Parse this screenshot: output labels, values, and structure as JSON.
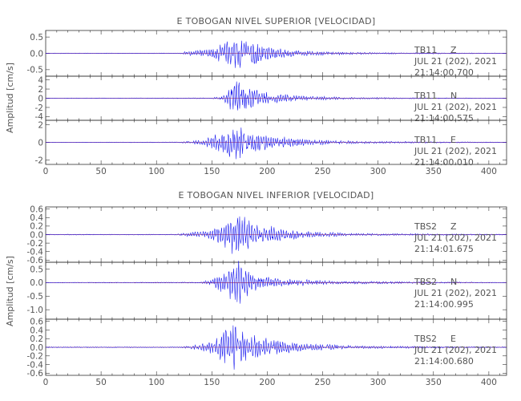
{
  "colors": {
    "trace": "#1010ee",
    "zero_line": "#cc2222",
    "axes": "#333333",
    "text": "#555555"
  },
  "chart_data": [
    {
      "type": "line",
      "title": "E TOBOGAN NIVEL SUPERIOR [VELOCIDAD]",
      "ylabel": "Amplitud [cm/s]",
      "xlim": [
        0,
        416
      ],
      "x_ticks": [
        "0",
        "50",
        "100",
        "150",
        "200",
        "250",
        "300",
        "350",
        "400"
      ],
      "grid": false,
      "series": [
        {
          "name": "TB11 Z",
          "station": "TB11",
          "component": "Z",
          "date": "JUL 21 (202), 2021",
          "time": "21:14:00.700",
          "ylim": [
            -0.7,
            0.7
          ],
          "y_ticks": [
            "0.5",
            "0.0",
            "-0.5"
          ],
          "envelope": [
            [
              0,
              0.01
            ],
            [
              120,
              0.01
            ],
            [
              125,
              0.05
            ],
            [
              150,
              0.14
            ],
            [
              165,
              0.45
            ],
            [
              170,
              0.56
            ],
            [
              175,
              0.62
            ],
            [
              180,
              0.48
            ],
            [
              190,
              0.38
            ],
            [
              200,
              0.22
            ],
            [
              220,
              0.12
            ],
            [
              250,
              0.06
            ],
            [
              300,
              0.025
            ],
            [
              416,
              0.01
            ]
          ]
        },
        {
          "name": "TB11 N",
          "station": "TB11",
          "component": "N",
          "date": "JUL 21 (202), 2021",
          "time": "21:14:00.575",
          "ylim": [
            -4.8,
            4.8
          ],
          "y_ticks": [
            "4",
            "2",
            "0",
            "-2",
            "-4"
          ],
          "envelope": [
            [
              0,
              0.05
            ],
            [
              150,
              0.1
            ],
            [
              160,
              0.6
            ],
            [
              168,
              3.2
            ],
            [
              175,
              4.3
            ],
            [
              182,
              2.6
            ],
            [
              195,
              1.6
            ],
            [
              210,
              1.0
            ],
            [
              240,
              0.5
            ],
            [
              280,
              0.2
            ],
            [
              416,
              0.05
            ]
          ]
        },
        {
          "name": "TB11 E",
          "station": "TB11",
          "component": "E",
          "date": "JUL 21 (202), 2021",
          "time": "21:14:00.010",
          "ylim": [
            -2.5,
            2.5
          ],
          "y_ticks": [
            "2",
            "0",
            "-2"
          ],
          "envelope": [
            [
              0,
              0.02
            ],
            [
              120,
              0.05
            ],
            [
              140,
              0.3
            ],
            [
              155,
              1.0
            ],
            [
              165,
              1.7
            ],
            [
              175,
              2.2
            ],
            [
              185,
              1.6
            ],
            [
              200,
              0.9
            ],
            [
              230,
              0.4
            ],
            [
              280,
              0.15
            ],
            [
              416,
              0.03
            ]
          ]
        }
      ]
    },
    {
      "type": "line",
      "title": "E TOBOGAN NIVEL INFERIOR [VELOCIDAD]",
      "ylabel": "Amplitud [cm/s]",
      "xlim": [
        0,
        416
      ],
      "x_ticks": [
        "0",
        "50",
        "100",
        "150",
        "200",
        "250",
        "300",
        "350",
        "400"
      ],
      "grid": false,
      "series": [
        {
          "name": "TBS2 Z",
          "station": "TBS2",
          "component": "Z",
          "date": "JUL 21 (202), 2021",
          "time": "21:14:01.675",
          "ylim": [
            -0.65,
            0.65
          ],
          "y_ticks": [
            "0.6",
            "0.4",
            "0.2",
            "0.0",
            "-0.2",
            "-0.4",
            "-0.6"
          ],
          "envelope": [
            [
              0,
              0.01
            ],
            [
              115,
              0.01
            ],
            [
              125,
              0.04
            ],
            [
              150,
              0.12
            ],
            [
              165,
              0.45
            ],
            [
              170,
              0.58
            ],
            [
              175,
              0.5
            ],
            [
              185,
              0.36
            ],
            [
              200,
              0.22
            ],
            [
              230,
              0.09
            ],
            [
              280,
              0.03
            ],
            [
              416,
              0.01
            ]
          ]
        },
        {
          "name": "TBS2 N",
          "station": "TBS2",
          "component": "N",
          "date": "JUL 21 (202), 2021",
          "time": "21:14:00.995",
          "ylim": [
            -1.35,
            0.75
          ],
          "y_ticks": [
            "0.5",
            "0.0",
            "-0.5",
            "-1.0"
          ],
          "envelope": [
            [
              0,
              0.01
            ],
            [
              140,
              0.02
            ],
            [
              150,
              0.15
            ],
            [
              160,
              0.45
            ],
            [
              168,
              0.8
            ],
            [
              172,
              1.1
            ],
            [
              180,
              0.55
            ],
            [
              195,
              0.3
            ],
            [
              220,
              0.15
            ],
            [
              260,
              0.06
            ],
            [
              416,
              0.01
            ]
          ]
        },
        {
          "name": "TBS2 E",
          "station": "TBS2",
          "component": "E",
          "date": "JUL 21 (202), 2021",
          "time": "21:14:00.680",
          "ylim": [
            -0.65,
            0.65
          ],
          "y_ticks": [
            "0.6",
            "0.4",
            "0.2",
            "0.0",
            "-0.2",
            "-0.4",
            "-0.6"
          ],
          "envelope": [
            [
              0,
              0.01
            ],
            [
              120,
              0.01
            ],
            [
              140,
              0.08
            ],
            [
              155,
              0.22
            ],
            [
              162,
              0.45
            ],
            [
              168,
              0.62
            ],
            [
              175,
              0.45
            ],
            [
              185,
              0.32
            ],
            [
              200,
              0.22
            ],
            [
              230,
              0.1
            ],
            [
              280,
              0.035
            ],
            [
              416,
              0.01
            ]
          ]
        }
      ]
    }
  ]
}
